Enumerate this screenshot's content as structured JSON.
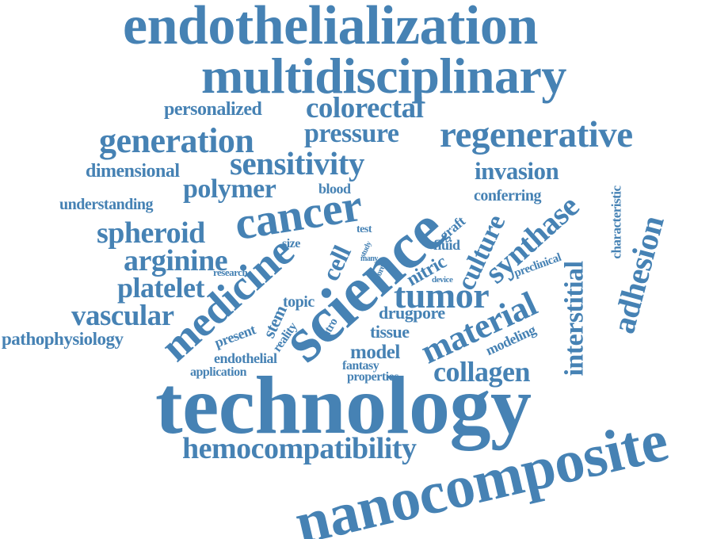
{
  "cloud": {
    "color": "#4682b4",
    "words": [
      "endothelialization",
      "multidisciplinary",
      "personalized",
      "colorectal",
      "generation",
      "pressure",
      "regenerative",
      "dimensional",
      "sensitivity",
      "invasion",
      "polymer",
      "blood",
      "understanding",
      "cancer",
      "science",
      "conferring",
      "characteristic",
      "synthase",
      "spheroid",
      "test",
      "graft",
      "size",
      "fluid",
      "arginine",
      "cell",
      "study",
      "many",
      "nitric",
      "culture",
      "preclinical",
      "adhesion",
      "research",
      "more",
      "device",
      "platelet",
      "medicine",
      "tumor",
      "interstitial",
      "topic",
      "vascular",
      "stem",
      "reality",
      "drugpore",
      "present",
      "vitro",
      "tissue",
      "material",
      "pathophysiology",
      "modeling",
      "endothelial",
      "model",
      "fantasy",
      "application",
      "properties",
      "collagen",
      "technology",
      "hemocompatibility",
      "nanocomposite"
    ]
  }
}
